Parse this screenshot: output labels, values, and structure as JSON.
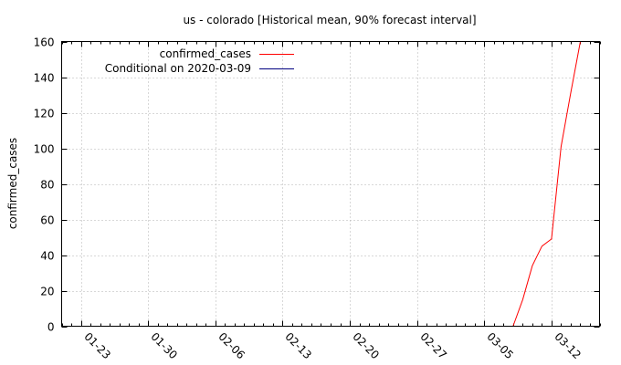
{
  "chart_data": {
    "type": "line",
    "title": "us - colorado [Historical mean, 90% forecast interval]",
    "xlabel": "",
    "ylabel": "confirmed_cases",
    "x_type": "date",
    "xlim": [
      "2020-01-21",
      "2020-03-17"
    ],
    "ylim": [
      0,
      160
    ],
    "grid": true,
    "legend_position": "top-left",
    "x_ticks": [
      {
        "date": "2020-01-23",
        "label": "01-23"
      },
      {
        "date": "2020-01-30",
        "label": "01-30"
      },
      {
        "date": "2020-02-06",
        "label": "02-06"
      },
      {
        "date": "2020-02-13",
        "label": "02-13"
      },
      {
        "date": "2020-02-20",
        "label": "02-20"
      },
      {
        "date": "2020-02-27",
        "label": "02-27"
      },
      {
        "date": "2020-03-05",
        "label": "03-05"
      },
      {
        "date": "2020-03-12",
        "label": "03-12"
      }
    ],
    "y_ticks": [
      0,
      20,
      40,
      60,
      80,
      100,
      120,
      140,
      160
    ],
    "series": [
      {
        "name": "confirmed_cases",
        "color": "#ff0000",
        "points": [
          {
            "x": "2020-03-08",
            "y": 0
          },
          {
            "x": "2020-03-09",
            "y": 15
          },
          {
            "x": "2020-03-10",
            "y": 34
          },
          {
            "x": "2020-03-11",
            "y": 45
          },
          {
            "x": "2020-03-12",
            "y": 49
          },
          {
            "x": "2020-03-13",
            "y": 101
          },
          {
            "x": "2020-03-14",
            "y": 131
          },
          {
            "x": "2020-03-15",
            "y": 160
          }
        ]
      },
      {
        "name": "Conditional on 2020-03-09",
        "color": "#000080",
        "points": []
      }
    ]
  }
}
